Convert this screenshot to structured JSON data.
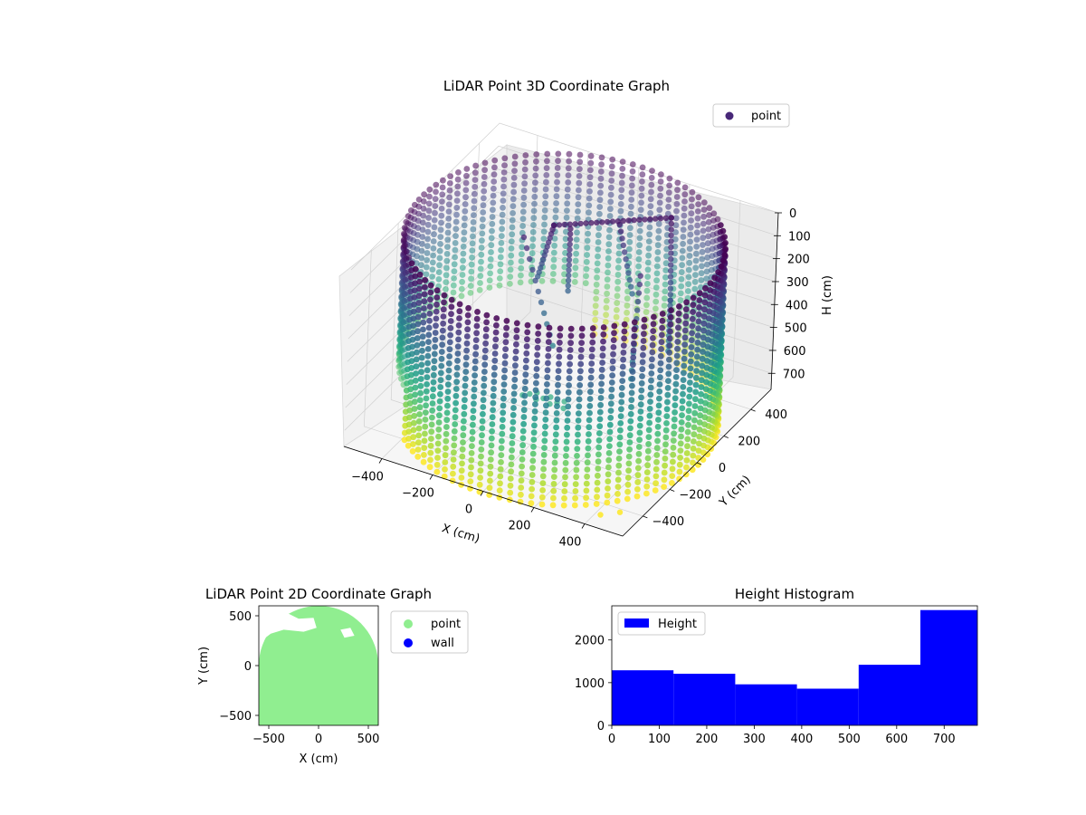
{
  "chart_data": [
    {
      "type": "scatter",
      "projection": "3d",
      "title": "LiDAR Point 3D Coordinate Graph",
      "xlabel": "X (cm)",
      "ylabel": "Y (cm)",
      "zlabel": "H (cm)",
      "xticks": [
        "−400",
        "−200",
        "0",
        "200",
        "400"
      ],
      "yticks": [
        "400",
        "200",
        "0",
        "−200",
        "−400"
      ],
      "zticks": [
        "0",
        "100",
        "200",
        "300",
        "400",
        "500",
        "600",
        "700"
      ],
      "xlim": [
        -550,
        550
      ],
      "ylim": [
        -550,
        550
      ],
      "zlim": [
        0,
        770
      ],
      "z_inverted": true,
      "colormap": "viridis",
      "colormap_note": "by height",
      "grid": true,
      "legend": {
        "position": "top-right",
        "entries": [
          {
            "label": "point",
            "color": "#482878"
          }
        ]
      },
      "series": [
        {
          "name": "point",
          "shape": "cylindrical wall of points, radius about 560 cm, heights 0 to 770 cm, with an interior frame structure near the top",
          "extra_points": [
            {
              "x": 420,
              "y": -470,
              "h": 0
            },
            {
              "x": 470,
              "y": -420,
              "h": 0
            }
          ]
        }
      ]
    },
    {
      "type": "scatter",
      "title": "LiDAR Point 2D Coordinate Graph",
      "xlabel": "X (cm)",
      "ylabel": "Y (cm)",
      "xticks": [
        "−500",
        "0",
        "500"
      ],
      "yticks": [
        "500",
        "0",
        "−500"
      ],
      "xlim": [
        -600,
        600
      ],
      "ylim": [
        -600,
        600
      ],
      "legend": {
        "position": "outside-right",
        "entries": [
          {
            "label": "point",
            "color": "#90ee90"
          },
          {
            "label": "wall",
            "color": "#0000ff"
          }
        ]
      },
      "point_color": "#90ee90",
      "wall_color": "#0000ff"
    },
    {
      "type": "bar",
      "subtype": "histogram",
      "title": "Height Histogram",
      "xlabel": "",
      "ylabel": "",
      "bin_edges": [
        0,
        130,
        260,
        390,
        520,
        650,
        770
      ],
      "values": [
        1290,
        1210,
        960,
        860,
        1420,
        2700
      ],
      "xticks": [
        "0",
        "100",
        "200",
        "300",
        "400",
        "500",
        "600",
        "700"
      ],
      "yticks": [
        "0",
        "1000",
        "2000"
      ],
      "xlim": [
        0,
        770
      ],
      "ylim": [
        0,
        2800
      ],
      "color": "#0000ff",
      "legend": {
        "position": "top-left",
        "entries": [
          {
            "label": "Height",
            "color": "#0000ff"
          }
        ]
      }
    }
  ]
}
